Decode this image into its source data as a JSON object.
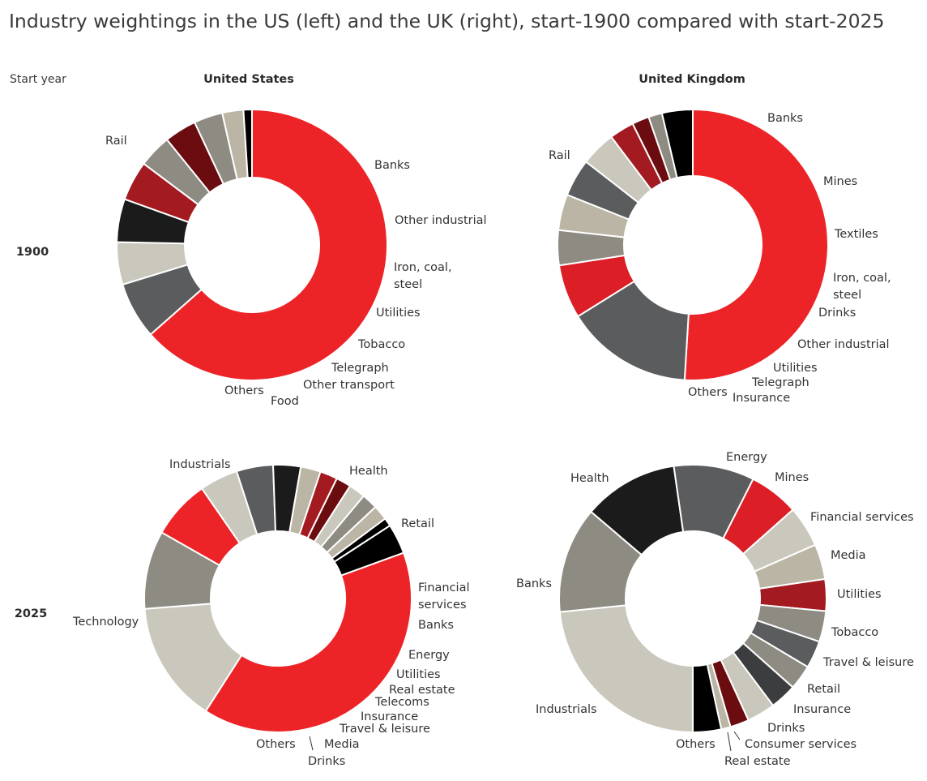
{
  "title": "Industry weightings in the US (left) and the UK (right), start-1900 compared with start-2025",
  "corner_label": "Start year",
  "columns": [
    "United States",
    "United Kingdom"
  ],
  "rows": [
    "1900",
    "2025"
  ],
  "colors": {
    "red": "#ec2427",
    "bright_red": "#dc1e26",
    "crimson": "#a31a21",
    "dark_red": "#6b0c10",
    "black": "#000000",
    "near_black": "#1b1b1b",
    "dark_gray": "#5a5c5e",
    "charcoal": "#3c3d3f",
    "medium_gray": "#8e8b82",
    "light_gray": "#cac8bc",
    "beige": "#bab5a4"
  },
  "chart_data": [
    {
      "type": "donut",
      "title": "United States",
      "row": "1900",
      "series": [
        {
          "label": "Rail",
          "value": 62.8,
          "color": "red"
        },
        {
          "label": "Banks",
          "value": 6.7,
          "color": "dark_gray"
        },
        {
          "label": "Other industrial",
          "value": 5.0,
          "color": "light_gray"
        },
        {
          "label": "Iron, coal, steel",
          "value": 5.1,
          "color": "near_black"
        },
        {
          "label": "Utilities",
          "value": 4.7,
          "color": "crimson"
        },
        {
          "label": "Tobacco",
          "value": 3.9,
          "color": "medium_gray"
        },
        {
          "label": "Telegraph",
          "value": 3.8,
          "color": "dark_red"
        },
        {
          "label": "Other transport",
          "value": 3.4,
          "color": "medium_gray"
        },
        {
          "label": "Food",
          "value": 2.5,
          "color": "beige"
        },
        {
          "label": "Others",
          "value": 1.0,
          "color": "black"
        }
      ]
    },
    {
      "type": "donut",
      "title": "United Kingdom",
      "row": "1900",
      "series": [
        {
          "label": "Rail",
          "value": 50.0,
          "color": "red"
        },
        {
          "label": "Banks",
          "value": 14.9,
          "color": "dark_gray"
        },
        {
          "label": "Mines",
          "value": 6.3,
          "color": "bright_red"
        },
        {
          "label": "Textiles",
          "value": 4.1,
          "color": "medium_gray"
        },
        {
          "label": "Iron, coal, steel",
          "value": 4.2,
          "color": "beige"
        },
        {
          "label": "Drinks",
          "value": 4.4,
          "color": "dark_gray"
        },
        {
          "label": "Other industrial",
          "value": 4.1,
          "color": "light_gray"
        },
        {
          "label": "Utilities",
          "value": 2.9,
          "color": "crimson"
        },
        {
          "label": "Telegraph",
          "value": 2.0,
          "color": "dark_red"
        },
        {
          "label": "Insurance",
          "value": 1.6,
          "color": "medium_gray"
        },
        {
          "label": "Others",
          "value": 3.6,
          "color": "black"
        }
      ]
    },
    {
      "type": "donut",
      "title": "United States",
      "row": "2025",
      "series": [
        {
          "label": "Technology",
          "value": 39.4,
          "color": "red"
        },
        {
          "label": "Industrials",
          "value": 14.6,
          "color": "light_gray"
        },
        {
          "label": "Health",
          "value": 9.4,
          "color": "medium_gray"
        },
        {
          "label": "Retail",
          "value": 7.1,
          "color": "red"
        },
        {
          "label": "Financial services",
          "value": 4.6,
          "color": "light_gray"
        },
        {
          "label": "Banks",
          "value": 4.4,
          "color": "dark_gray"
        },
        {
          "label": "Energy",
          "value": 3.3,
          "color": "near_black"
        },
        {
          "label": "Utilities",
          "value": 2.4,
          "color": "beige"
        },
        {
          "label": "Real estate",
          "value": 2.1,
          "color": "crimson"
        },
        {
          "label": "Telecoms",
          "value": 1.8,
          "color": "dark_red"
        },
        {
          "label": "Insurance",
          "value": 2.0,
          "color": "light_gray"
        },
        {
          "label": "Travel & leisure",
          "value": 1.9,
          "color": "medium_gray"
        },
        {
          "label": "Media",
          "value": 1.8,
          "color": "beige"
        },
        {
          "label": "Drinks",
          "value": 1.0,
          "color": "black"
        },
        {
          "label": "Others",
          "value": 3.6,
          "color": "black"
        }
      ]
    },
    {
      "type": "donut",
      "title": "United Kingdom",
      "row": "2025",
      "series": [
        {
          "label": "Industrials",
          "value": 22.6,
          "color": "light_gray"
        },
        {
          "label": "Banks",
          "value": 12.4,
          "color": "medium_gray"
        },
        {
          "label": "Health",
          "value": 11.1,
          "color": "near_black"
        },
        {
          "label": "Energy",
          "value": 9.4,
          "color": "dark_gray"
        },
        {
          "label": "Mines",
          "value": 5.8,
          "color": "bright_red"
        },
        {
          "label": "Financial services",
          "value": 4.8,
          "color": "light_gray"
        },
        {
          "label": "Media",
          "value": 4.1,
          "color": "beige"
        },
        {
          "label": "Utilities",
          "value": 3.7,
          "color": "crimson"
        },
        {
          "label": "Tobacco",
          "value": 3.6,
          "color": "medium_gray"
        },
        {
          "label": "Travel & leisure",
          "value": 3.2,
          "color": "dark_gray"
        },
        {
          "label": "Retail",
          "value": 2.9,
          "color": "medium_gray"
        },
        {
          "label": "Insurance",
          "value": 3.1,
          "color": "charcoal"
        },
        {
          "label": "Drinks",
          "value": 3.3,
          "color": "light_gray"
        },
        {
          "label": "Consumer services",
          "value": 2.2,
          "color": "dark_red"
        },
        {
          "label": "Real estate",
          "value": 1.1,
          "color": "beige"
        },
        {
          "label": "Others",
          "value": 3.3,
          "color": "black"
        }
      ]
    }
  ]
}
